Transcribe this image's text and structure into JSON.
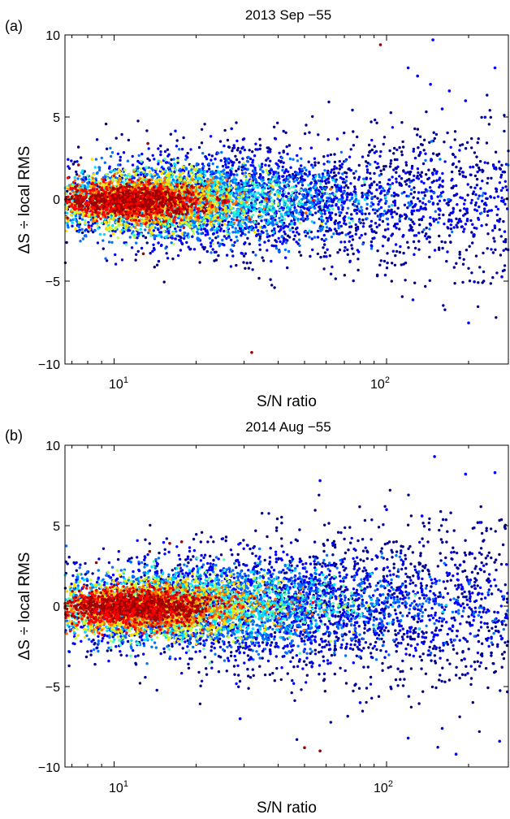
{
  "chart_data": [
    {
      "type": "scatter",
      "panel_label": "(a)",
      "title": "2013 Sep −55",
      "xlabel": "S/N ratio",
      "ylabel": "ΔS ÷ local RMS",
      "x_scale": "log",
      "xlim": [
        6.6,
        280
      ],
      "ylim": [
        -10,
        10
      ],
      "x_ticks": [
        {
          "value": 10,
          "base": "10",
          "exp": "1"
        },
        {
          "value": 100,
          "base": "10",
          "exp": "2"
        }
      ],
      "y_ticks": [
        -10,
        -5,
        0,
        5,
        10
      ],
      "y_tick_labels": [
        "−10",
        "−5",
        "0",
        "5",
        "10"
      ],
      "color_scale": [
        "#00008f",
        "#0000ff",
        "#0070ff",
        "#00dfff",
        "#50ffaf",
        "#bfff40",
        "#ffdf00",
        "#ff7000",
        "#ff0000",
        "#9f0000"
      ],
      "density_blobs": [
        {
          "x": 11.8,
          "y": -0.1,
          "x_spread": 0.28,
          "y_spread": 0.55,
          "level": 9
        },
        {
          "x": 13.0,
          "y": -0.1,
          "x_spread": 0.4,
          "y_spread": 0.8,
          "level": 7
        },
        {
          "x": 16.0,
          "y": -0.1,
          "x_spread": 0.55,
          "y_spread": 1.0,
          "level": 4
        },
        {
          "x": 22.0,
          "y": 0.0,
          "x_spread": 0.75,
          "y_spread": 1.2,
          "level": 2
        },
        {
          "x": 45.0,
          "y": 0.0,
          "x_spread": 1.3,
          "y_spread": 1.6,
          "level": 1
        }
      ],
      "outliers": [
        {
          "x": 95,
          "y": 9.4
        },
        {
          "x": 148,
          "y": 9.7
        },
        {
          "x": 120,
          "y": 8.0
        },
        {
          "x": 130,
          "y": 7.5
        },
        {
          "x": 145,
          "y": 7.0
        },
        {
          "x": 170,
          "y": 6.6
        },
        {
          "x": 195,
          "y": 6.0
        },
        {
          "x": 250,
          "y": 8.0
        },
        {
          "x": 27,
          "y": 4.3
        },
        {
          "x": 32,
          "y": -9.3
        },
        {
          "x": 200,
          "y": -7.5
        },
        {
          "x": 125,
          "y": -6.1
        },
        {
          "x": 99,
          "y": -4.6
        },
        {
          "x": 210,
          "y": -5.0
        },
        {
          "x": 265,
          "y": -4.7
        },
        {
          "x": 13.3,
          "y": 3.4
        },
        {
          "x": 12.8,
          "y": -3.3
        },
        {
          "x": 7.4,
          "y": 2.1
        },
        {
          "x": 160,
          "y": 5.5
        },
        {
          "x": 230,
          "y": 5.0
        }
      ],
      "n_points": 7000
    },
    {
      "type": "scatter",
      "panel_label": "(b)",
      "title": "2014 Aug −55",
      "xlabel": "S/N ratio",
      "ylabel": "ΔS ÷ local RMS",
      "x_scale": "log",
      "xlim": [
        6.6,
        280
      ],
      "ylim": [
        -10,
        10
      ],
      "x_ticks": [
        {
          "value": 10,
          "base": "10",
          "exp": "1"
        },
        {
          "value": 100,
          "base": "10",
          "exp": "2"
        }
      ],
      "y_ticks": [
        -10,
        -5,
        0,
        5,
        10
      ],
      "y_tick_labels": [
        "−10",
        "−5",
        "0",
        "5",
        "10"
      ],
      "color_scale": [
        "#00008f",
        "#0000ff",
        "#0070ff",
        "#00dfff",
        "#50ffaf",
        "#bfff40",
        "#ffdf00",
        "#ff7000",
        "#ff0000",
        "#9f0000"
      ],
      "density_blobs": [
        {
          "x": 11.8,
          "y": -0.1,
          "x_spread": 0.3,
          "y_spread": 0.6,
          "level": 9
        },
        {
          "x": 14.0,
          "y": -0.1,
          "x_spread": 0.45,
          "y_spread": 0.85,
          "level": 7
        },
        {
          "x": 18.0,
          "y": 0.0,
          "x_spread": 0.6,
          "y_spread": 1.1,
          "level": 4
        },
        {
          "x": 28.0,
          "y": 0.0,
          "x_spread": 0.85,
          "y_spread": 1.35,
          "level": 2
        },
        {
          "x": 60.0,
          "y": 0.0,
          "x_spread": 1.4,
          "y_spread": 1.9,
          "level": 1
        }
      ],
      "outliers": [
        {
          "x": 150,
          "y": 9.3
        },
        {
          "x": 57,
          "y": 7.8
        },
        {
          "x": 195,
          "y": 8.2
        },
        {
          "x": 250,
          "y": 8.3
        },
        {
          "x": 29,
          "y": -7.0
        },
        {
          "x": 50,
          "y": -8.8
        },
        {
          "x": 57,
          "y": -9.0
        },
        {
          "x": 180,
          "y": -9.2
        },
        {
          "x": 260,
          "y": -8.4
        },
        {
          "x": 120,
          "y": -8.2
        },
        {
          "x": 17.7,
          "y": 4.0
        },
        {
          "x": 13.5,
          "y": 3.4
        },
        {
          "x": 8.6,
          "y": 2.7
        },
        {
          "x": 16.0,
          "y": 3.9
        },
        {
          "x": 100,
          "y": 6.0
        },
        {
          "x": 135,
          "y": 5.6
        },
        {
          "x": 220,
          "y": 5.2
        },
        {
          "x": 80,
          "y": -6.0
        },
        {
          "x": 7.0,
          "y": -0.6
        },
        {
          "x": 160,
          "y": -7.6
        }
      ],
      "n_points": 8000
    }
  ]
}
